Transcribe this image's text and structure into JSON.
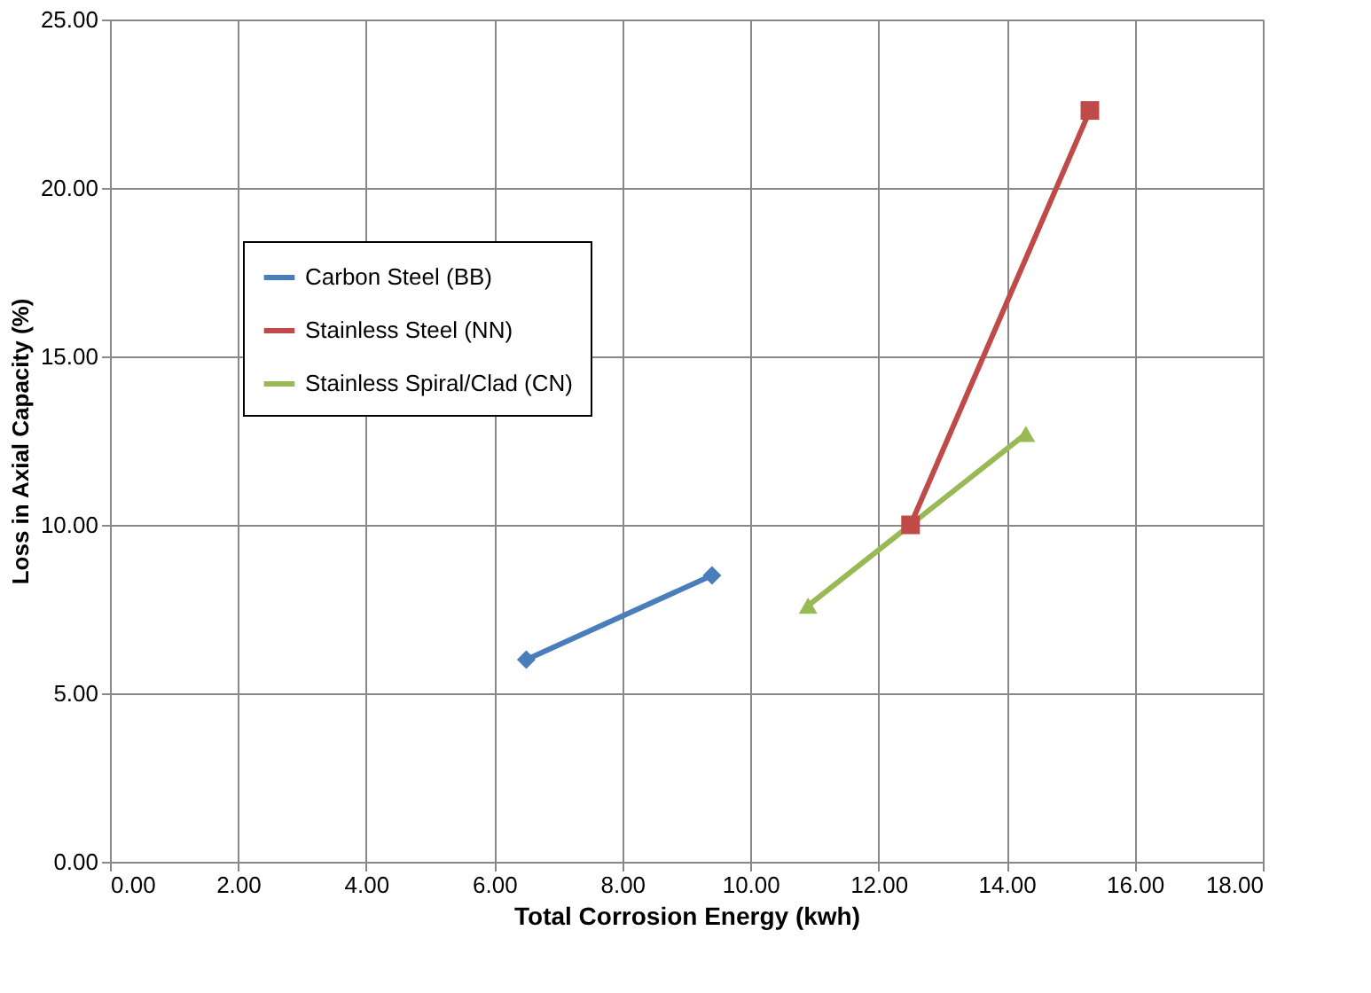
{
  "chart_data": {
    "type": "line",
    "xlabel": "Total Corrosion Energy (kwh)",
    "ylabel": "Loss in Axial Capacity (%)",
    "xlim": [
      0,
      18
    ],
    "ylim": [
      0,
      25
    ],
    "xticks": [
      {
        "value": 0,
        "label": "0.00"
      },
      {
        "value": 2,
        "label": "2.00"
      },
      {
        "value": 4,
        "label": "4.00"
      },
      {
        "value": 6,
        "label": "6.00"
      },
      {
        "value": 8,
        "label": "8.00"
      },
      {
        "value": 10,
        "label": "10.00"
      },
      {
        "value": 12,
        "label": "12.00"
      },
      {
        "value": 14,
        "label": "14.00"
      },
      {
        "value": 16,
        "label": "16.00"
      },
      {
        "value": 18,
        "label": "18.00"
      }
    ],
    "yticks": [
      {
        "value": 0,
        "label": "0.00"
      },
      {
        "value": 5,
        "label": "5.00"
      },
      {
        "value": 10,
        "label": "10.00"
      },
      {
        "value": 15,
        "label": "15.00"
      },
      {
        "value": 20,
        "label": "20.00"
      },
      {
        "value": 25,
        "label": "25.00"
      }
    ],
    "grid": true,
    "legend": "top left",
    "line_style": "solid",
    "series": [
      {
        "name": "Carbon Steel (BB)",
        "color": "#4a7ebb",
        "marker": "diamond",
        "x": [
          6.5,
          9.4
        ],
        "values": [
          6.0,
          8.5
        ]
      },
      {
        "name": "Stainless Steel (NN)",
        "color": "#be4b48",
        "marker": "square",
        "x": [
          12.5,
          15.3
        ],
        "values": [
          10.0,
          22.3
        ]
      },
      {
        "name": "Stainless Spiral/Clad (CN)",
        "color": "#98b954",
        "marker": "triangle",
        "x": [
          10.9,
          14.3
        ],
        "values": [
          7.6,
          12.7
        ]
      }
    ]
  }
}
